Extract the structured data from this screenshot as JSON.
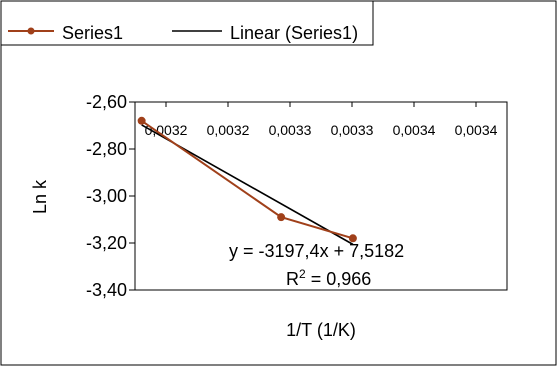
{
  "chart_data": {
    "type": "scatter",
    "title": "",
    "xlabel": "1/T (1/K)",
    "ylabel": "Ln k",
    "xlim": [
      0.00319,
      0.00347
    ],
    "ylim": [
      -3.4,
      -2.6
    ],
    "x_tick_labels": [
      "0,0032",
      "0,0032",
      "0,0033",
      "0,0033",
      "0,0034",
      "0,0034"
    ],
    "y_ticks": [
      -2.6,
      -2.8,
      -3.0,
      -3.2,
      -3.4
    ],
    "y_tick_labels": [
      "-2,60",
      "-2,80",
      "-3,00",
      "-3,20",
      "-3,40"
    ],
    "grid": false,
    "legend_position": "top-left",
    "series": [
      {
        "name": "Series1",
        "color": "#a0401a",
        "marker": "circle",
        "x": [
          0.003195,
          0.0033,
          0.003354
        ],
        "y": [
          -2.68,
          -3.09,
          -3.18
        ]
      },
      {
        "name": "Linear (Series1)",
        "color": "#000000",
        "kind": "trendline",
        "slope": -3197.4,
        "intercept": 7.5182,
        "x_range": [
          0.003195,
          0.003354
        ]
      }
    ],
    "annotations": {
      "equation": "y = -3197,4x + 7,5182",
      "r_squared_prefix": "R",
      "r_squared_sup": "2",
      "r_squared_value": " = 0,966"
    }
  }
}
